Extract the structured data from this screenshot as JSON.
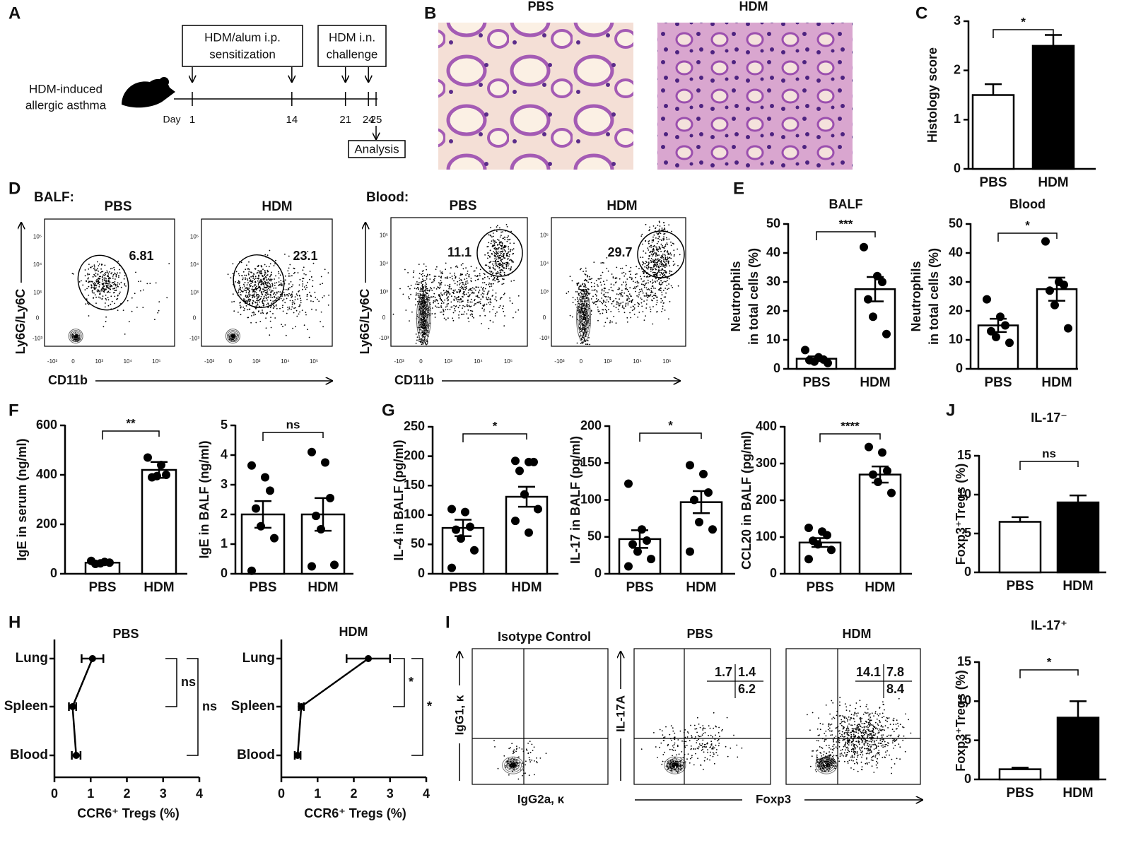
{
  "panel_labels": [
    "A",
    "B",
    "C",
    "D",
    "E",
    "F",
    "G",
    "H",
    "I",
    "J"
  ],
  "schematic": {
    "model": [
      "HDM-induced",
      "allergic asthma"
    ],
    "sensitization": [
      "HDM/alum i.p.",
      "sensitization"
    ],
    "challenge": [
      "HDM i.n.",
      "challenge"
    ],
    "day_label": "Day",
    "days": [
      1,
      14,
      21,
      24,
      25
    ],
    "analysis": "Analysis"
  },
  "histology": {
    "titles": [
      "PBS",
      "HDM"
    ]
  },
  "flow_neutrophils": {
    "tissues": [
      "BALF:",
      "Blood:"
    ],
    "groups": [
      "PBS",
      "HDM"
    ],
    "gates": [
      6.81,
      23.1,
      11.1,
      29.7
    ],
    "y_label": "Ly6G/Ly6C",
    "x_label": "CD11b",
    "ticks": [
      "-10³",
      "0",
      "10³",
      "10⁴",
      "10⁵"
    ]
  },
  "flow_il17": {
    "titles": [
      "Isotype Control",
      "PBS",
      "HDM"
    ],
    "isotype_y": "IgG1, κ",
    "isotype_x": "IgG2a, κ",
    "y_label": "IL-17A",
    "x_label": "Foxp3",
    "quadrants": [
      [
        1.7,
        1.4,
        6.2
      ],
      [
        14.1,
        7.8,
        8.4
      ]
    ]
  },
  "chart_data": [
    {
      "type": "bar",
      "ylabel": "Histology score",
      "categories": [
        "PBS",
        "HDM"
      ],
      "values": [
        1.5,
        2.5
      ],
      "errors": [
        0.22,
        0.22
      ],
      "colors": [
        "#ffffff",
        "#000000"
      ],
      "ylim": [
        0,
        3
      ],
      "yticks": [
        0,
        1,
        2,
        3
      ],
      "significance": "*"
    },
    {
      "type": "bar",
      "title": "BALF",
      "ylabel": [
        "Neutrophils",
        "in total cells (%)"
      ],
      "categories": [
        "PBS",
        "HDM"
      ],
      "values": [
        3.5,
        27.5
      ],
      "errors": [
        0.8,
        4.2
      ],
      "points": [
        [
          6.5,
          4,
          3.2,
          3,
          2.5,
          2
        ],
        [
          42,
          32,
          30,
          24,
          18,
          12
        ]
      ],
      "colors": [
        "#ffffff",
        "#ffffff"
      ],
      "ylim": [
        0,
        50
      ],
      "yticks": [
        0,
        10,
        20,
        30,
        40,
        50
      ],
      "significance": "***"
    },
    {
      "type": "bar",
      "title": "Blood",
      "ylabel": [
        "Neutrophils",
        "in total cells (%)"
      ],
      "categories": [
        "PBS",
        "HDM"
      ],
      "values": [
        15,
        27.5
      ],
      "errors": [
        2.3,
        4
      ],
      "points": [
        [
          24,
          18,
          15,
          13,
          11,
          9
        ],
        [
          44,
          30,
          29,
          27,
          22,
          14
        ]
      ],
      "colors": [
        "#ffffff",
        "#ffffff"
      ],
      "ylim": [
        0,
        50
      ],
      "yticks": [
        0,
        10,
        20,
        30,
        40,
        50
      ],
      "significance": "*"
    },
    {
      "type": "bar",
      "ylabel": "IgE in serum (ng/ml)",
      "categories": [
        "PBS",
        "HDM"
      ],
      "values": [
        45,
        420
      ],
      "errors": [
        5,
        32
      ],
      "points": [
        [
          52,
          48,
          45,
          40,
          42
        ],
        [
          470,
          440,
          400,
          390,
          395
        ]
      ],
      "colors": [
        "#ffffff",
        "#ffffff"
      ],
      "ylim": [
        0,
        600
      ],
      "yticks": [
        0,
        200,
        400,
        600
      ],
      "significance": "**"
    },
    {
      "type": "bar",
      "ylabel": "IgE in BALF (ng/ml)",
      "categories": [
        "PBS",
        "HDM"
      ],
      "values": [
        2,
        2
      ],
      "errors": [
        0.45,
        0.55
      ],
      "points": [
        [
          3.65,
          3.25,
          2.8,
          2.2,
          1.6,
          1.2,
          0.1
        ],
        [
          4.1,
          3.75,
          2.55,
          1.95,
          1.5,
          0.3,
          0.25
        ]
      ],
      "colors": [
        "#ffffff",
        "#ffffff"
      ],
      "ylim": [
        0,
        5
      ],
      "yticks": [
        0,
        1,
        2,
        3,
        4,
        5
      ],
      "significance": "ns"
    },
    {
      "type": "bar",
      "ylabel": "IL-4 in BALF (pg/ml)",
      "categories": [
        "PBS",
        "HDM"
      ],
      "values": [
        78,
        131
      ],
      "errors": [
        14,
        17
      ],
      "points": [
        [
          110,
          105,
          80,
          75,
          60,
          40,
          10
        ],
        [
          192,
          190,
          190,
          175,
          135,
          110,
          90,
          70
        ]
      ],
      "colors": [
        "#ffffff",
        "#ffffff"
      ],
      "ylim": [
        0,
        250
      ],
      "yticks": [
        0,
        50,
        100,
        150,
        200,
        250
      ],
      "significance": "*"
    },
    {
      "type": "bar",
      "ylabel": "IL-17 in BALF (pg/ml)",
      "categories": [
        "PBS",
        "HDM"
      ],
      "values": [
        47,
        97
      ],
      "errors": [
        12,
        15
      ],
      "points": [
        [
          122,
          60,
          45,
          40,
          30,
          20,
          10
        ],
        [
          147,
          135,
          110,
          100,
          70,
          60,
          30
        ]
      ],
      "colors": [
        "#ffffff",
        "#ffffff"
      ],
      "ylim": [
        0,
        200
      ],
      "yticks": [
        0,
        50,
        100,
        150,
        200
      ],
      "significance": "*"
    },
    {
      "type": "bar",
      "ylabel": "CCL20 in BALF (pg/ml)",
      "categories": [
        "PBS",
        "HDM"
      ],
      "values": [
        85,
        270
      ],
      "errors": [
        12,
        22
      ],
      "points": [
        [
          125,
          115,
          105,
          90,
          80,
          65,
          40
        ],
        [
          345,
          330,
          280,
          270,
          250,
          220
        ]
      ],
      "colors": [
        "#ffffff",
        "#ffffff"
      ],
      "ylim": [
        0,
        400
      ],
      "yticks": [
        0,
        100,
        200,
        300,
        400
      ],
      "significance": "****"
    },
    {
      "type": "bar",
      "title": "IL-17⁻",
      "ylabel": "Foxp3⁺Tregs (%)",
      "categories": [
        "PBS",
        "HDM"
      ],
      "values": [
        6.5,
        9
      ],
      "errors": [
        0.6,
        0.9
      ],
      "colors": [
        "#ffffff",
        "#000000"
      ],
      "ylim": [
        0,
        15
      ],
      "yticks": [
        0,
        5,
        10,
        15
      ],
      "significance": "ns"
    },
    {
      "type": "bar",
      "title": "IL-17⁺",
      "ylabel": "Foxp3⁺Tregs (%)",
      "categories": [
        "PBS",
        "HDM"
      ],
      "values": [
        1.3,
        7.9
      ],
      "errors": [
        0.2,
        2.1
      ],
      "colors": [
        "#ffffff",
        "#000000"
      ],
      "ylim": [
        0,
        15
      ],
      "yticks": [
        0,
        5,
        10,
        15
      ],
      "significance": "*"
    },
    {
      "type": "dot",
      "title": "PBS",
      "categories": [
        "Lung",
        "Spleen",
        "Blood"
      ],
      "values": [
        1.05,
        0.5,
        0.6
      ],
      "errors": [
        0.3,
        0.1,
        0.12
      ],
      "xlabel": "CCR6⁺ Tregs (%)",
      "xlim": [
        0,
        4
      ],
      "xticks": [
        0,
        1,
        2,
        3,
        4
      ],
      "significance": [
        "ns",
        "ns"
      ]
    },
    {
      "type": "dot",
      "title": "HDM",
      "categories": [
        "Lung",
        "Spleen",
        "Blood"
      ],
      "values": [
        2.4,
        0.55,
        0.45
      ],
      "errors": [
        0.6,
        0.07,
        0.08
      ],
      "xlabel": "CCR6⁺ Tregs (%)",
      "xlim": [
        0,
        4
      ],
      "xticks": [
        0,
        1,
        2,
        3,
        4
      ],
      "significance": [
        "*",
        "*"
      ]
    }
  ]
}
